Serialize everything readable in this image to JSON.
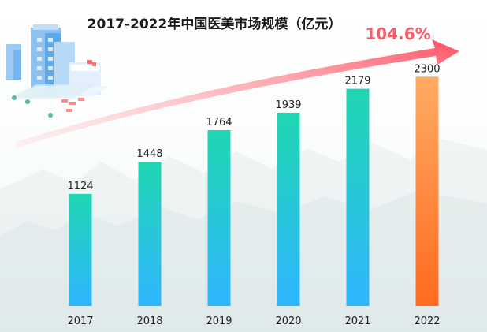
{
  "chart_data": {
    "type": "bar",
    "title": "2017-2022年中国医美市场规模（亿元）",
    "categories": [
      "2017",
      "2018",
      "2019",
      "2020",
      "2021",
      "2022"
    ],
    "values": [
      1124,
      1448,
      1764,
      1939,
      2179,
      2300
    ],
    "value_labels": [
      "1124",
      "1448",
      "1764",
      "1939",
      "2179",
      "2300"
    ],
    "xlabel": "",
    "ylabel": "",
    "ylim": [
      0,
      2500
    ],
    "grid": false,
    "legend": "none",
    "highlight_last": true,
    "growth_annotation": "104.6%",
    "colors": {
      "bar_top": "#1fd6b1",
      "bar_bottom": "#2fb6ff",
      "highlight_top": "#ffab63",
      "highlight_bottom": "#ff6b1f",
      "arrow_start": "#ffb3b8",
      "arrow_end": "#ff4b60"
    }
  }
}
